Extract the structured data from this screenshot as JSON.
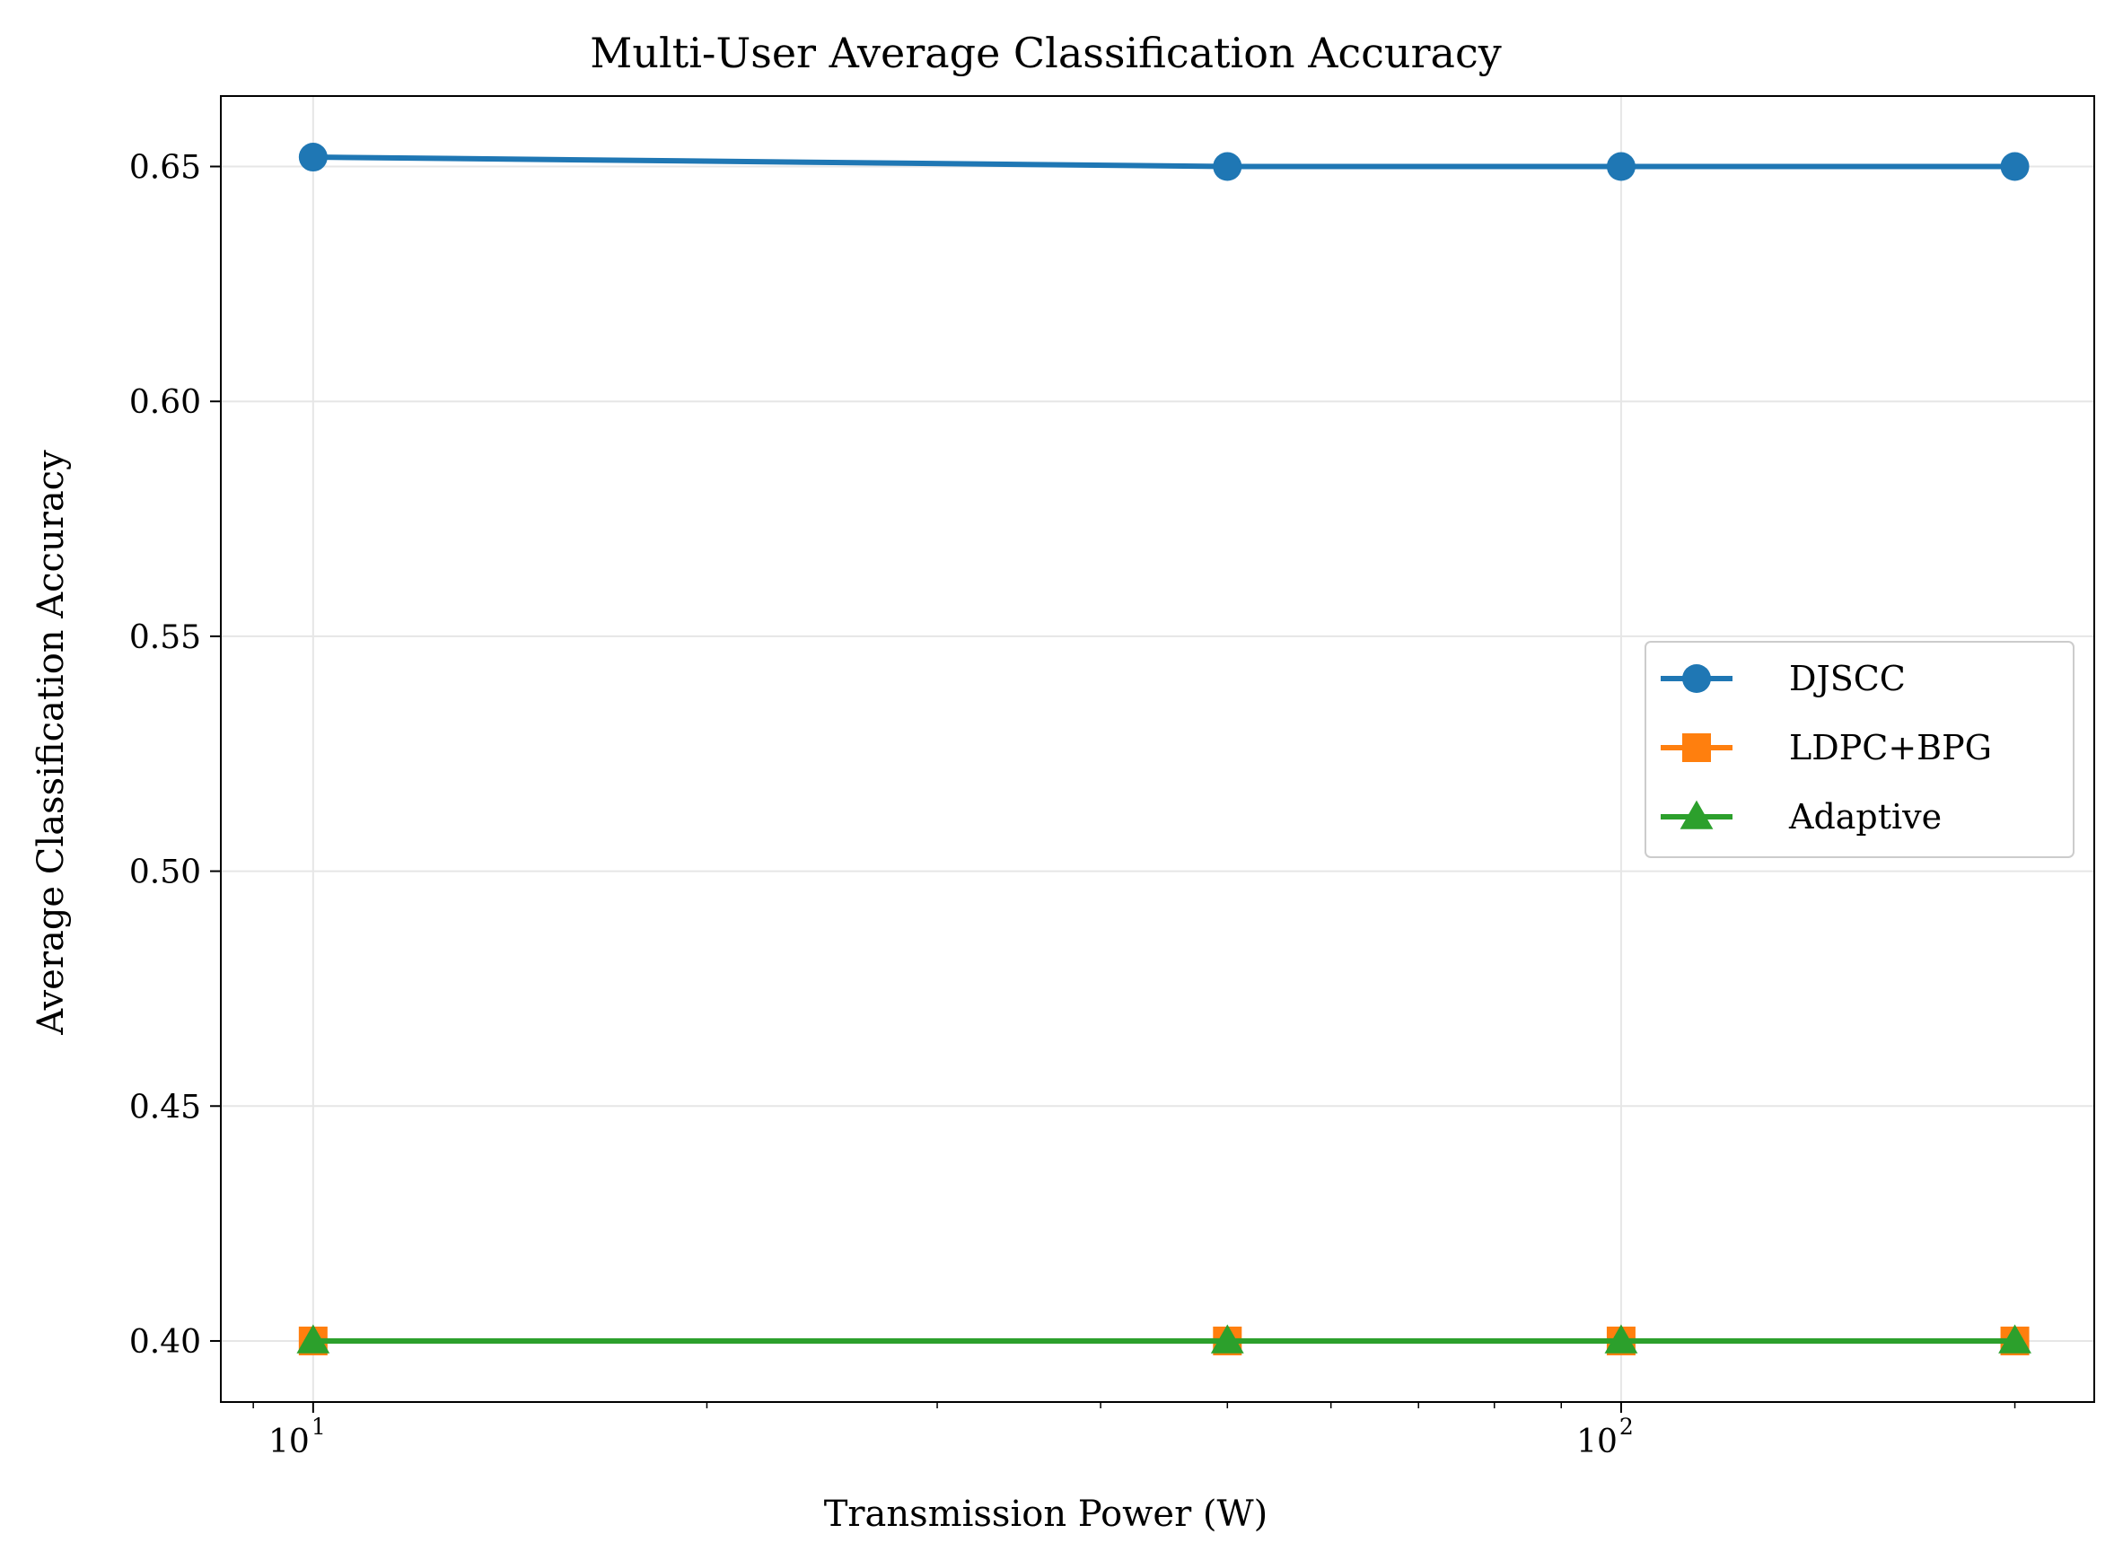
{
  "chart_data": {
    "type": "line",
    "title": "Multi-User Average Classification Accuracy",
    "xlabel": "Transmission Power (W)",
    "ylabel": "Average Classification Accuracy",
    "x_scale": "log",
    "xlim": [
      8.5,
      230
    ],
    "ylim": [
      0.387,
      0.665
    ],
    "x_ticks": [
      {
        "value": 10,
        "base": "10",
        "exp": "1"
      },
      {
        "value": 100,
        "base": "10",
        "exp": "2"
      }
    ],
    "y_ticks": [
      {
        "value": 0.4,
        "label": "0.40"
      },
      {
        "value": 0.45,
        "label": "0.45"
      },
      {
        "value": 0.5,
        "label": "0.50"
      },
      {
        "value": 0.55,
        "label": "0.55"
      },
      {
        "value": 0.6,
        "label": "0.60"
      },
      {
        "value": 0.65,
        "label": "0.65"
      }
    ],
    "grid": true,
    "legend": "center-right",
    "x": [
      10,
      50,
      100,
      200
    ],
    "series": [
      {
        "name": "DJSCC",
        "marker": "circle",
        "color": "#1f77b4",
        "values": [
          0.652,
          0.65,
          0.65,
          0.65
        ]
      },
      {
        "name": "LDPC+BPG",
        "marker": "square",
        "color": "#ff7f0e",
        "values": [
          0.4,
          0.4,
          0.4,
          0.4
        ]
      },
      {
        "name": "Adaptive",
        "marker": "triangle",
        "color": "#2ca02c",
        "values": [
          0.4,
          0.4,
          0.4,
          0.4
        ]
      }
    ]
  }
}
